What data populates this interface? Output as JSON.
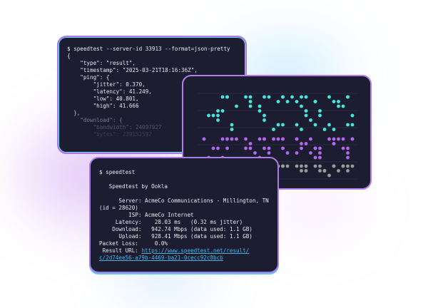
{
  "json_window": {
    "command": "$ speedtest --server-id 33913 --format=json-pretty",
    "lines": [
      "{",
      "    \"type\": \"result\",",
      "    \"timestamp\": \"2025-03-21T18:16:36Z\",",
      "    \"ping\": {",
      "        \"jitter\": 0.370,",
      "        \"latency\": 41.249,",
      "        \"low\": 40.801,",
      "        \"high\": 41.666",
      "  },",
      "    \"download\": {",
      "        \"bandwidth\": 24097927",
      "        \"bytes\": 239152592"
    ]
  },
  "chart_window": {
    "colors": {
      "download": "#45e6dc",
      "upload": "#b168ec",
      "latency": "#9a9a9a",
      "grid": "#2a2c44"
    }
  },
  "terminal_window": {
    "command": "$ speedtest",
    "title": "   Speedtest by Ookla",
    "server": "      Server: AcmeCo Communications - Millington, TN",
    "server_id": "(id = 28620)",
    "isp": "         ISP: AcmeCo Internet",
    "latency": "     Latency:    28.03 ms   (0.32 ms jitter)",
    "download": "    Download:   942.74 Mbps (data used: 1.1 GB)",
    "upload": "      Upload:   928.41 Mbps (data used: 1.1 GB)",
    "packet_loss": "Packet Loss:     0.0%",
    "result_label": " Result URL: ",
    "result_url_1": "https://www.speedtest.net/result/",
    "result_url_2": "c/2d74ee56-a79b-4469-ba21-0cecc92c8bcb"
  }
}
